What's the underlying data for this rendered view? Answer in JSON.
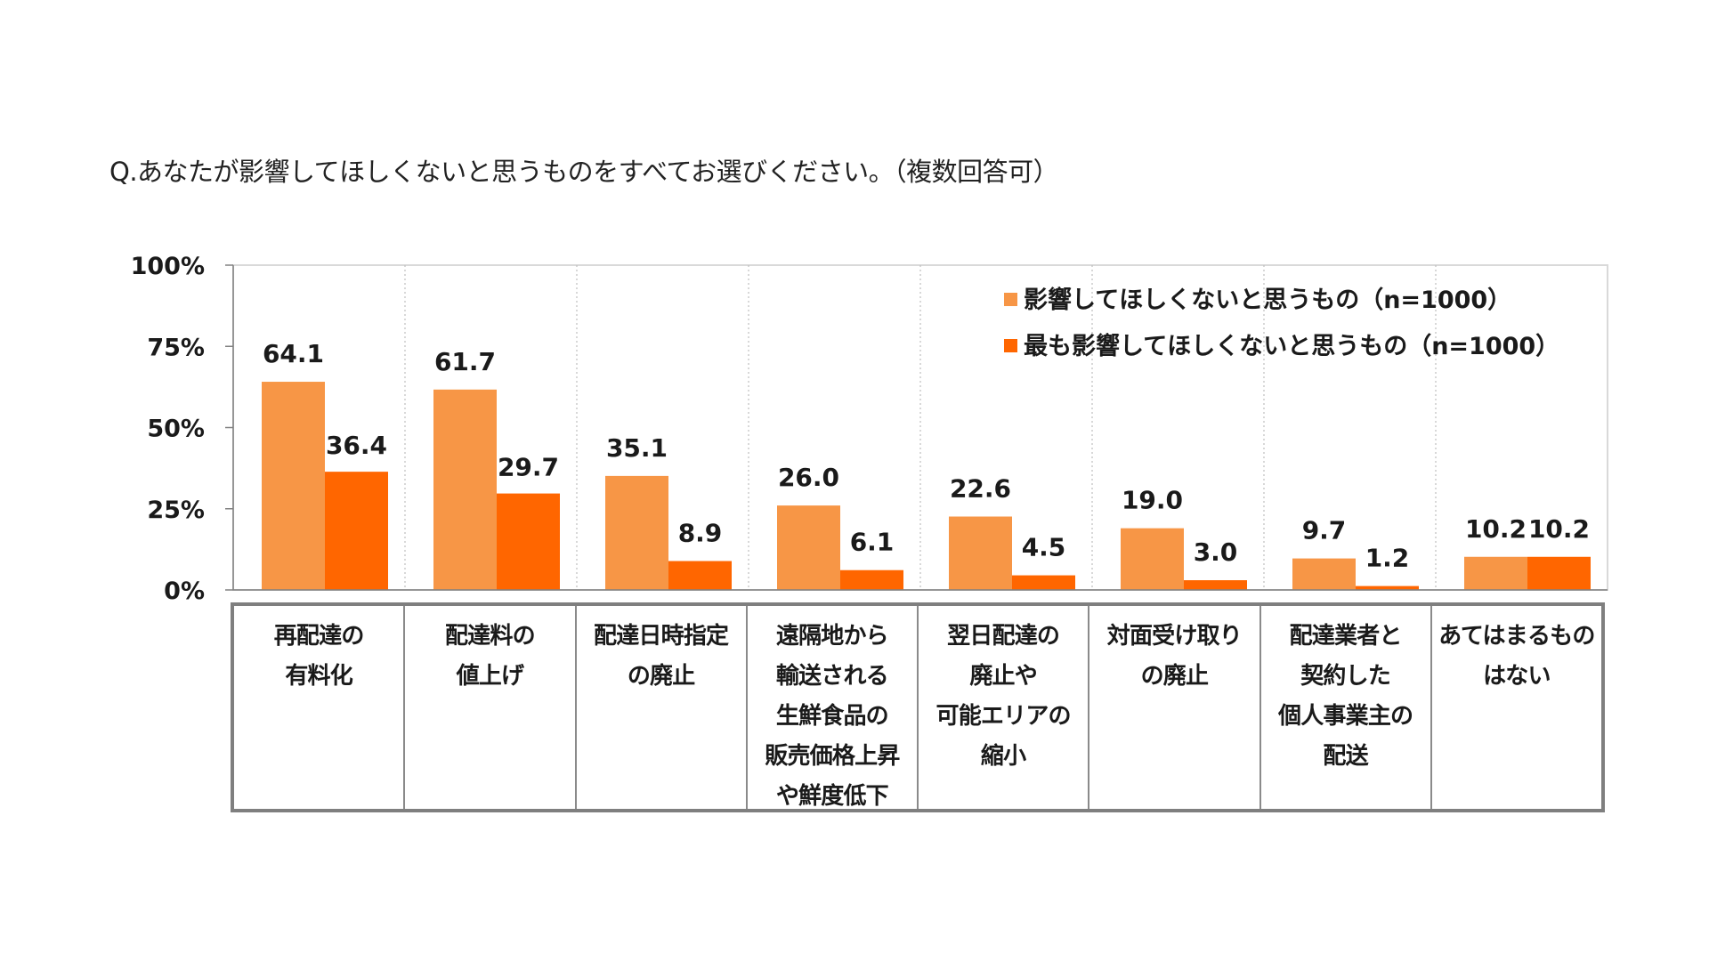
{
  "question": "Q.あなたが影響してほしくないと思うものをすべてお選びください。（複数回答可）",
  "chart_data": {
    "type": "bar",
    "y_ticks": [
      "100%",
      "75%",
      "50%",
      "25%",
      "0%"
    ],
    "ylim": [
      0,
      100
    ],
    "legend_position": "top-right",
    "categories": [
      [
        "再配達の",
        "有料化"
      ],
      [
        "配達料の",
        "値上げ"
      ],
      [
        "配達日時指定",
        "の廃止"
      ],
      [
        "遠隔地から",
        "輸送される",
        "生鮮食品の",
        "販売価格上昇",
        "や鮮度低下"
      ],
      [
        "翌日配達の",
        "廃止や",
        "可能エリアの",
        "縮小"
      ],
      [
        "対面受け取り",
        "の廃止"
      ],
      [
        "配達業者と",
        "契約した",
        "個人事業主の",
        "配送"
      ],
      [
        "あてはまるもの",
        "はない"
      ]
    ],
    "series": [
      {
        "name": "影響してほしくないと思うもの（n=1000）",
        "color": "#F79646",
        "values": [
          64.1,
          61.7,
          35.1,
          26.0,
          22.6,
          19.0,
          9.7,
          10.2
        ],
        "labels": [
          "64.1",
          "61.7",
          "35.1",
          "26.0",
          "22.6",
          "19.0",
          "9.7",
          "10.2"
        ]
      },
      {
        "name": "最も影響してほしくないと思うもの（n=1000）",
        "color": "#FF6600",
        "values": [
          36.4,
          29.7,
          8.9,
          6.1,
          4.5,
          3.0,
          1.2,
          10.2
        ],
        "labels": [
          "36.4",
          "29.7",
          "8.9",
          "6.1",
          "4.5",
          "3.0",
          "1.2",
          "10.2"
        ]
      }
    ]
  }
}
